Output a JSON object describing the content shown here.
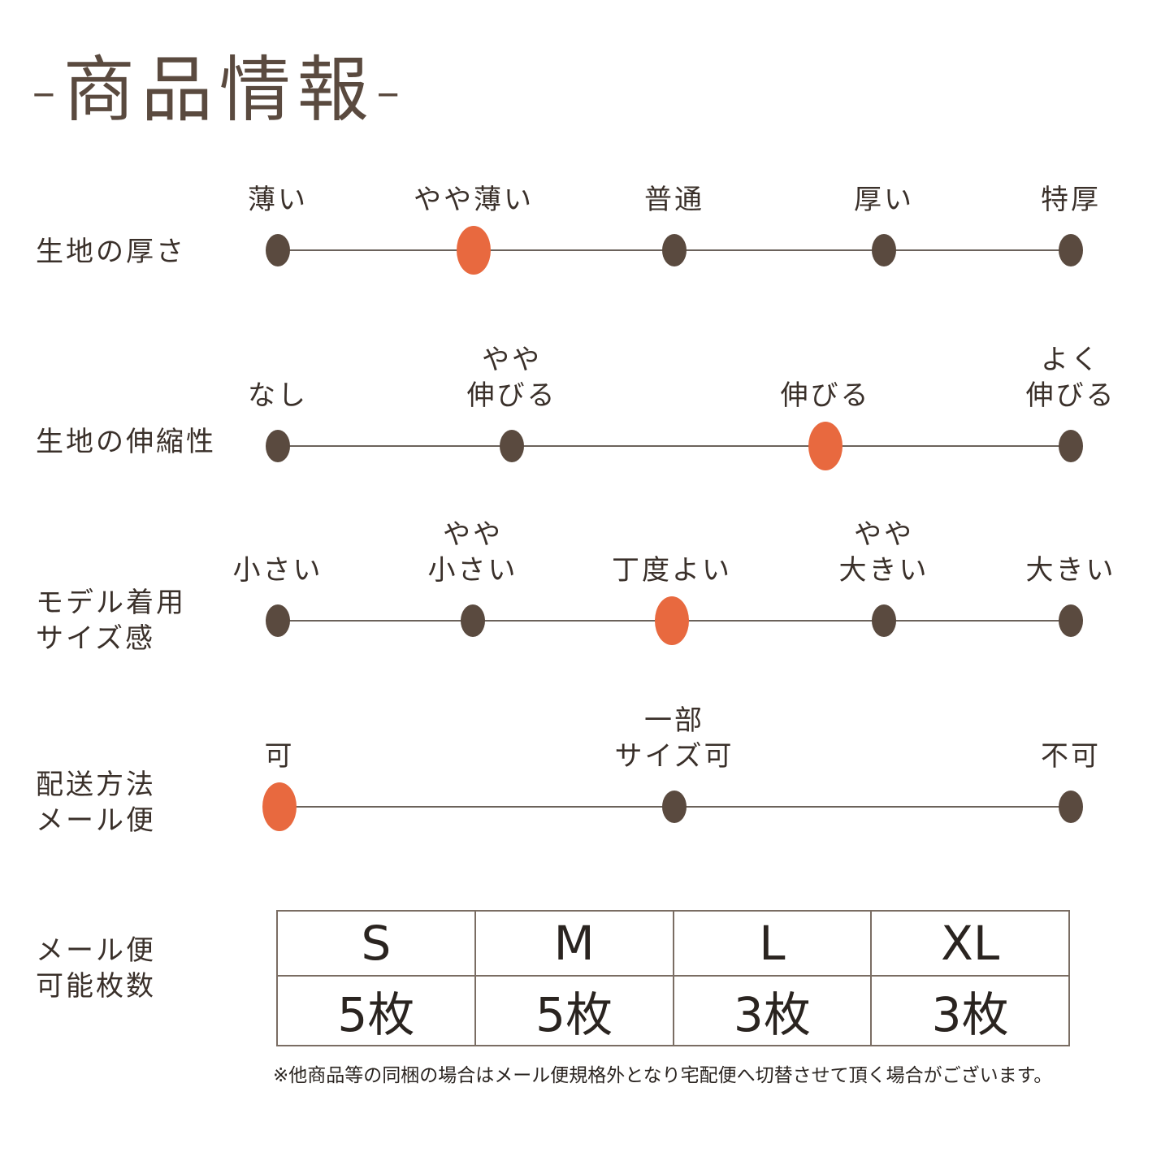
{
  "title": "-商品情報-",
  "colors": {
    "dot": "#5a4a3f",
    "selected": "#e8693f",
    "line": "#6b625b"
  },
  "rows": [
    {
      "label": "生地の厚さ",
      "selected_index": 1,
      "options": [
        "薄い",
        "やや薄い",
        "普通",
        "厚い",
        "特厚"
      ]
    },
    {
      "label": "生地の伸縮性",
      "selected_index": 2,
      "options": [
        "なし",
        "やや\n伸びる",
        "伸びる",
        "よく\n伸びる"
      ]
    },
    {
      "label": "モデル着用\nサイズ感",
      "selected_index": 2,
      "options": [
        "小さい",
        "やや\n小さい",
        "丁度よい",
        "やや\n大きい",
        "大きい"
      ]
    },
    {
      "label": "配送方法\nメール便",
      "selected_index": 0,
      "options": [
        "可",
        "一部\nサイズ可",
        "不可"
      ]
    }
  ],
  "mail_table": {
    "label": "メール便\n可能枚数",
    "sizes": [
      "S",
      "M",
      "L",
      "XL"
    ],
    "counts": [
      "5枚",
      "5枚",
      "3枚",
      "3枚"
    ]
  },
  "note": "※他商品等の同梱の場合はメール便規格外となり宅配便へ切替させて頂く場合がございます。"
}
